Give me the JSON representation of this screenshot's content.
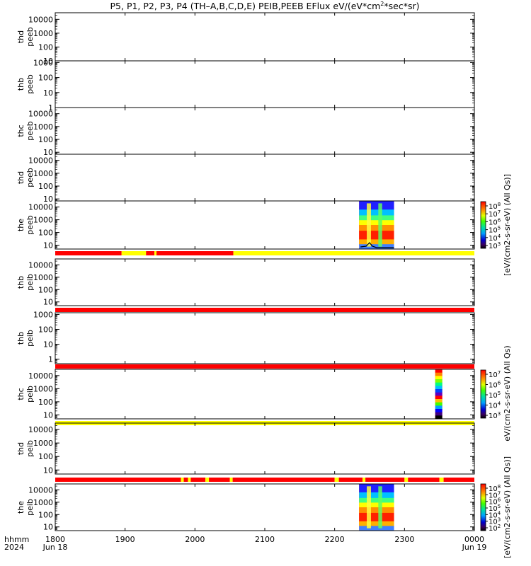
{
  "chart_data": {
    "type": "heatmap",
    "title": "P5, P1, P2, P3, P4 (TH–A,B,C,D,E) PEIB,PEEB EFlux eV/(eV*cm",
    "title_sup": "2",
    "title_tail": "*sec*sr)",
    "x_axis": {
      "range": [
        1800,
        2400
      ],
      "ticks": [
        "1800",
        "1900",
        "2000",
        "2100",
        "2200",
        "2300",
        "0000"
      ],
      "left_label": [
        "hhmm",
        "2024"
      ],
      "start_date": "Jun 18",
      "end_date": "Jun 19"
    },
    "panels": [
      {
        "probe": "thd",
        "species": "peeb",
        "ticks": [
          "10000",
          "1000",
          "100",
          "10"
        ],
        "vmin": 10,
        "vmax": 30000,
        "flag": null,
        "spectrogram": null
      },
      {
        "probe": "thb",
        "species": "peeb",
        "ticks": [
          "1000",
          "100",
          "10",
          "1"
        ],
        "vmin": 1,
        "vmax": 1300,
        "flag": null,
        "spectrogram": null
      },
      {
        "probe": "thc",
        "species": "peeb",
        "ticks": [
          "10000",
          "1000",
          "100",
          "10"
        ],
        "vmin": 7,
        "vmax": 30000,
        "flag": null,
        "spectrogram": null
      },
      {
        "probe": "thd",
        "species": "peeb",
        "ticks": [
          "10000",
          "1000",
          "100",
          "10"
        ],
        "vmin": 7,
        "vmax": 30000,
        "flag": null,
        "spectrogram": null
      },
      {
        "probe": "the",
        "species": "peeb",
        "ticks": [
          "10000",
          "1000",
          "100",
          "10"
        ],
        "vmin": 5,
        "vmax": 30000,
        "spectrogram": {
          "start": 2235,
          "end": 2285,
          "colorbar_exps": [
            "8",
            "7",
            "6",
            "5",
            "4",
            "3"
          ]
        },
        "flag": [
          {
            "start": 1800,
            "end": 1895,
            "color": "red"
          },
          {
            "start": 1895,
            "end": 1930,
            "color": "yellow"
          },
          {
            "start": 1930,
            "end": 1942,
            "color": "red"
          },
          {
            "start": 1942,
            "end": 1945,
            "color": "yellow"
          },
          {
            "start": 1945,
            "end": 2055,
            "color": "red"
          },
          {
            "start": 2055,
            "end": 2400,
            "color": "yellow"
          }
        ]
      },
      {
        "probe": "thb",
        "species": "peib",
        "ticks": [
          "10000",
          "1000",
          "100",
          "10"
        ],
        "vmin": 5,
        "vmax": 30000,
        "spectrogram": null,
        "flag": [
          {
            "start": 1800,
            "end": 2400,
            "color": "red"
          }
        ]
      },
      {
        "probe": "thb",
        "species": "peib",
        "ticks": [
          "1000",
          "100",
          "10",
          "1"
        ],
        "vmin": 0.5,
        "vmax": 1300,
        "spectrogram": null,
        "flag": [
          {
            "start": 1800,
            "end": 2400,
            "color": "red"
          }
        ]
      },
      {
        "probe": "thc",
        "species": "peib",
        "ticks": [
          "10000",
          "1000",
          "100",
          "10"
        ],
        "vmin": 5,
        "vmax": 30000,
        "spectrogram": {
          "start": 2344,
          "end": 2354,
          "colorbar_exps": [
            "7",
            "6",
            "5",
            "4",
            "3"
          ]
        },
        "flag": [
          {
            "start": 1800,
            "end": 2400,
            "color": "yellow"
          }
        ]
      },
      {
        "probe": "thd",
        "species": "peib",
        "ticks": [
          "10000",
          "1000",
          "100",
          "10"
        ],
        "vmin": 5,
        "vmax": 30000,
        "spectrogram": null,
        "flag": [
          {
            "start": 1800,
            "end": 1980,
            "color": "red"
          },
          {
            "start": 1980,
            "end": 1984,
            "color": "yellow"
          },
          {
            "start": 1984,
            "end": 1990,
            "color": "red"
          },
          {
            "start": 1990,
            "end": 1994,
            "color": "yellow"
          },
          {
            "start": 1994,
            "end": 2015,
            "color": "red"
          },
          {
            "start": 2015,
            "end": 2020,
            "color": "yellow"
          },
          {
            "start": 2020,
            "end": 2050,
            "color": "red"
          },
          {
            "start": 2050,
            "end": 2054,
            "color": "yellow"
          },
          {
            "start": 2054,
            "end": 2200,
            "color": "red"
          },
          {
            "start": 2200,
            "end": 2206,
            "color": "yellow"
          },
          {
            "start": 2206,
            "end": 2240,
            "color": "red"
          },
          {
            "start": 2240,
            "end": 2244,
            "color": "yellow"
          },
          {
            "start": 2244,
            "end": 2300,
            "color": "red"
          },
          {
            "start": 2300,
            "end": 2305,
            "color": "yellow"
          },
          {
            "start": 2305,
            "end": 2350,
            "color": "red"
          },
          {
            "start": 2350,
            "end": 2356,
            "color": "yellow"
          },
          {
            "start": 2356,
            "end": 2400,
            "color": "red"
          }
        ]
      },
      {
        "probe": "the",
        "species": "peib",
        "ticks": [
          "10000",
          "1000",
          "100",
          "10"
        ],
        "vmin": 5,
        "vmax": 30000,
        "spectrogram": {
          "start": 2235,
          "end": 2285,
          "colorbar_exps": [
            "8",
            "7",
            "6",
            "5",
            "4",
            "3",
            "2"
          ]
        },
        "flag": null
      }
    ],
    "colorbar_unit": "[eV/(cm2-s-sr-eV) (All Qs)]",
    "colorbar_unit_short": "eV/(cm2-s-sr-eV) (All Qs)",
    "colors": {
      "red": "#ff0000",
      "yellow": "#ffff00",
      "frame": "#000000"
    }
  }
}
